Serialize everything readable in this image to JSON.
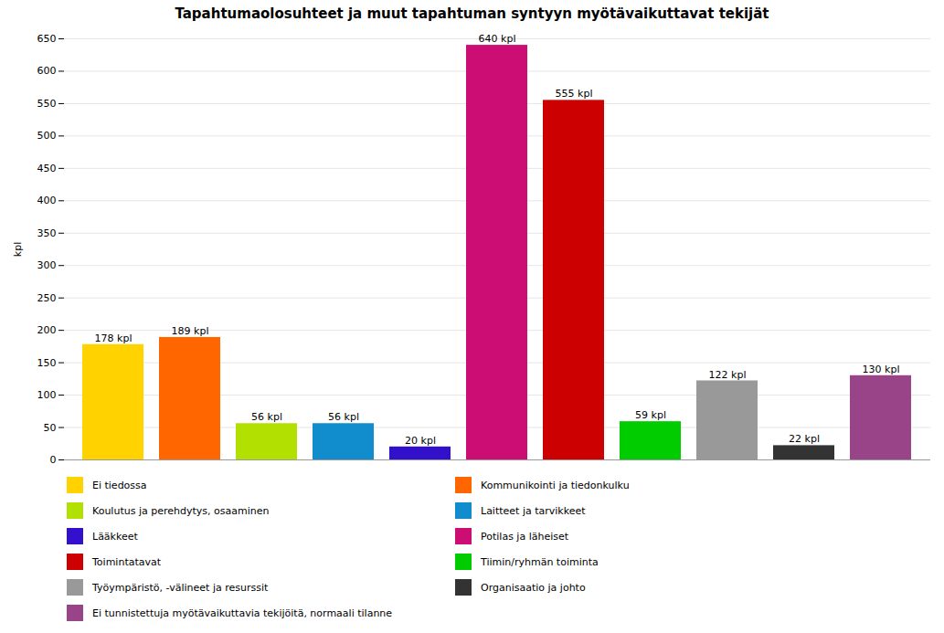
{
  "chart_data": {
    "type": "bar",
    "title": "Tapahtumaolosuhteet ja muut tapahtuman syntyyn myötävaikuttavat tekijät",
    "y_label": "kpl",
    "categories": [
      "Ei tiedossa",
      "Kommunikointi ja tiedonkulku",
      "Koulutus ja perehdytys, osaaminen",
      "Laitteet ja tarvikkeet",
      "Lääkkeet",
      "Potilas ja läheiset",
      "Toimintatavat",
      "Tiimin/ryhmän toiminta",
      "Työympäristö, -välineet ja resurssit",
      "Organisaatio ja johto",
      "Ei tunnistettuja myötävaikuttavia tekijöitä, normaali tilanne"
    ],
    "values": [
      178,
      189,
      56,
      56,
      20,
      640,
      555,
      59,
      122,
      22,
      130
    ],
    "value_labels": [
      "178 kpl",
      "189 kpl",
      "56 kpl",
      "56 kpl",
      "20 kpl",
      "640 kpl",
      "555 kpl",
      "59 kpl",
      "122 kpl",
      "22 kpl",
      "130 kpl"
    ],
    "colors": [
      "#ffd200",
      "#ff6600",
      "#b2e000",
      "#118ccc",
      "#3311cc",
      "#cc0e74",
      "#cc0000",
      "#00cc00",
      "#999999",
      "#333333",
      "#994488"
    ],
    "ylim": [
      0,
      650
    ],
    "yticks": [
      0,
      50,
      100,
      150,
      200,
      250,
      300,
      350,
      400,
      450,
      500,
      550,
      600,
      650
    ],
    "grid": true,
    "data_labels": true,
    "tick_labels": "y",
    "legend": "bottom"
  }
}
